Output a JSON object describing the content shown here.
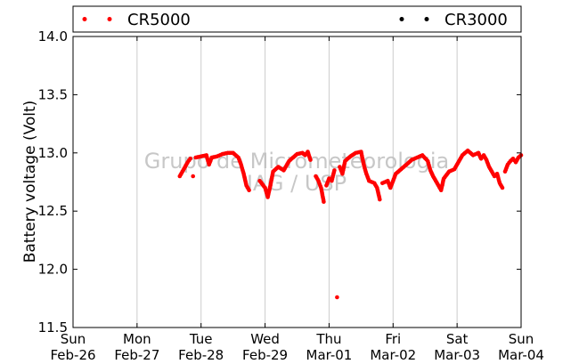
{
  "chart_data": {
    "type": "scatter",
    "ylabel": "Battery voltage (Volt)",
    "ylim": [
      11.5,
      14.0
    ],
    "yticks": [
      "11.5",
      "12.0",
      "12.5",
      "13.0",
      "13.5",
      "14.0"
    ],
    "xlim": [
      "2012-02-26",
      "2012-03-04"
    ],
    "xticks": [
      {
        "day": "Sun",
        "date": "Feb-26"
      },
      {
        "day": "Mon",
        "date": "Feb-27"
      },
      {
        "day": "Tue",
        "date": "Feb-28"
      },
      {
        "day": "Wed",
        "date": "Feb-29"
      },
      {
        "day": "Thu",
        "date": "Mar-01"
      },
      {
        "day": "Fri",
        "date": "Mar-02"
      },
      {
        "day": "Sat",
        "date": "Mar-03"
      },
      {
        "day": "Sun",
        "date": "Mar-04"
      }
    ],
    "grid": "vertical",
    "legend_position": "top",
    "watermark": [
      "Grupo de Micrometeorologia",
      "IAG / USP"
    ],
    "series": [
      {
        "name": "CR5000",
        "color": "#ff0000",
        "points": [
          [
            "2012-02-27 16:00",
            12.8
          ],
          [
            "2012-02-27 17:00",
            12.84
          ],
          [
            "2012-02-27 18:00",
            12.88
          ],
          [
            "2012-02-27 19:00",
            12.92
          ],
          [
            "2012-02-27 20:00",
            12.95
          ],
          [
            "2012-02-27 21:00",
            12.8
          ],
          [
            "2012-02-27 22:00",
            12.96
          ],
          [
            "2012-02-28 00:00",
            12.97
          ],
          [
            "2012-02-28 02:00",
            12.98
          ],
          [
            "2012-02-28 03:00",
            12.9
          ],
          [
            "2012-02-28 04:00",
            12.96
          ],
          [
            "2012-02-28 06:00",
            12.97
          ],
          [
            "2012-02-28 08:00",
            12.99
          ],
          [
            "2012-02-28 10:00",
            13.0
          ],
          [
            "2012-02-28 12:00",
            13.0
          ],
          [
            "2012-02-28 14:00",
            12.96
          ],
          [
            "2012-02-28 15:00",
            12.9
          ],
          [
            "2012-02-28 16:00",
            12.82
          ],
          [
            "2012-02-28 17:00",
            12.72
          ],
          [
            "2012-02-28 18:00",
            12.68
          ],
          [
            "2012-02-28 22:00",
            12.76
          ],
          [
            "2012-02-29 00:00",
            12.7
          ],
          [
            "2012-02-29 01:00",
            12.62
          ],
          [
            "2012-02-29 02:00",
            12.72
          ],
          [
            "2012-02-29 03:00",
            12.84
          ],
          [
            "2012-02-29 05:00",
            12.88
          ],
          [
            "2012-02-29 07:00",
            12.85
          ],
          [
            "2012-02-29 09:00",
            12.93
          ],
          [
            "2012-02-29 12:00",
            12.99
          ],
          [
            "2012-02-29 14:00",
            13.0
          ],
          [
            "2012-02-29 15:00",
            12.98
          ],
          [
            "2012-02-29 16:00",
            13.01
          ],
          [
            "2012-02-29 17:00",
            12.94
          ],
          [
            "2012-02-29 19:00",
            12.8
          ],
          [
            "2012-02-29 20:00",
            12.76
          ],
          [
            "2012-02-29 21:00",
            12.7
          ],
          [
            "2012-02-29 22:00",
            12.58
          ],
          [
            "2012-02-29 23:00",
            12.72
          ],
          [
            "2012-03-01 00:00",
            12.78
          ],
          [
            "2012-03-01 01:00",
            12.76
          ],
          [
            "2012-03-01 02:00",
            12.85
          ],
          [
            "2012-03-01 03:00",
            11.76
          ],
          [
            "2012-03-01 04:00",
            12.88
          ],
          [
            "2012-03-01 05:00",
            12.82
          ],
          [
            "2012-03-01 06:00",
            12.93
          ],
          [
            "2012-03-01 08:00",
            12.97
          ],
          [
            "2012-03-01 10:00",
            13.0
          ],
          [
            "2012-03-01 12:00",
            13.01
          ],
          [
            "2012-03-01 13:00",
            12.9
          ],
          [
            "2012-03-01 14:00",
            12.82
          ],
          [
            "2012-03-01 15:00",
            12.76
          ],
          [
            "2012-03-01 17:00",
            12.74
          ],
          [
            "2012-03-01 18:00",
            12.7
          ],
          [
            "2012-03-01 19:00",
            12.6
          ],
          [
            "2012-03-01 20:00",
            12.74
          ],
          [
            "2012-03-01 22:00",
            12.76
          ],
          [
            "2012-03-01 23:00",
            12.7
          ],
          [
            "2012-03-02 00:00",
            12.76
          ],
          [
            "2012-03-02 01:00",
            12.82
          ],
          [
            "2012-03-02 03:00",
            12.86
          ],
          [
            "2012-03-02 05:00",
            12.9
          ],
          [
            "2012-03-02 07:00",
            12.94
          ],
          [
            "2012-03-02 09:00",
            12.96
          ],
          [
            "2012-03-02 11:00",
            12.98
          ],
          [
            "2012-03-02 13:00",
            12.93
          ],
          [
            "2012-03-02 14:00",
            12.85
          ],
          [
            "2012-03-02 15:00",
            12.8
          ],
          [
            "2012-03-02 16:00",
            12.76
          ],
          [
            "2012-03-02 17:00",
            12.72
          ],
          [
            "2012-03-02 18:00",
            12.68
          ],
          [
            "2012-03-02 19:00",
            12.78
          ],
          [
            "2012-03-02 21:00",
            12.84
          ],
          [
            "2012-03-02 23:00",
            12.86
          ],
          [
            "2012-03-03 00:00",
            12.9
          ],
          [
            "2012-03-03 02:00",
            12.98
          ],
          [
            "2012-03-03 04:00",
            13.02
          ],
          [
            "2012-03-03 06:00",
            12.98
          ],
          [
            "2012-03-03 08:00",
            13.0
          ],
          [
            "2012-03-03 09:00",
            12.95
          ],
          [
            "2012-03-03 10:00",
            12.98
          ],
          [
            "2012-03-03 11:00",
            12.94
          ],
          [
            "2012-03-03 12:00",
            12.88
          ],
          [
            "2012-03-03 13:00",
            12.84
          ],
          [
            "2012-03-03 14:00",
            12.8
          ],
          [
            "2012-03-03 15:00",
            12.82
          ],
          [
            "2012-03-03 16:00",
            12.74
          ],
          [
            "2012-03-03 17:00",
            12.7
          ],
          [
            "2012-03-03 18:00",
            12.84
          ],
          [
            "2012-03-03 19:00",
            12.9
          ],
          [
            "2012-03-03 20:00",
            12.93
          ],
          [
            "2012-03-03 21:00",
            12.95
          ],
          [
            "2012-03-03 22:00",
            12.92
          ],
          [
            "2012-03-03 23:00",
            12.96
          ],
          [
            "2012-03-04 00:00",
            12.98
          ]
        ]
      },
      {
        "name": "CR3000",
        "color": "#000000",
        "points": []
      }
    ]
  }
}
